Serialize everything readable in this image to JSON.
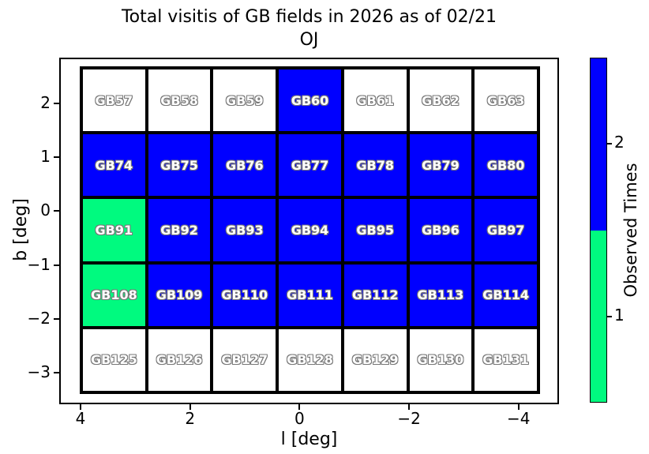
{
  "title": {
    "line1": "Total visitis of GB fields in 2026 as of 02/21",
    "line2": "OJ"
  },
  "chart_data": {
    "type": "heatmap",
    "title": "Total visitis of GB fields in 2026 as of 02/21\nOJ",
    "xlabel": "l [deg]",
    "ylabel": "b [deg]",
    "x_axis_inverted": true,
    "x_tick_labels": [
      "4",
      "2",
      "0",
      "−2",
      "−4"
    ],
    "y_tick_labels": [
      "2",
      "1",
      "0",
      "−1",
      "−2",
      "−3"
    ],
    "value_colors": {
      "0": "#ffffff",
      "1": "#00fa7f",
      "2": "#0000ff"
    },
    "colorbar": {
      "label": "Observed Times",
      "tick_labels": [
        "2",
        "1"
      ],
      "segments": [
        {
          "value": 2,
          "color": "#0000ff"
        },
        {
          "value": 1,
          "color": "#00fa7f"
        }
      ]
    },
    "rows": [
      {
        "cells": [
          {
            "label": "GB57",
            "value": 0
          },
          {
            "label": "GB58",
            "value": 0
          },
          {
            "label": "GB59",
            "value": 0
          },
          {
            "label": "GB60",
            "value": 2
          },
          {
            "label": "GB61",
            "value": 0
          },
          {
            "label": "GB62",
            "value": 0
          },
          {
            "label": "GB63",
            "value": 0
          }
        ]
      },
      {
        "cells": [
          {
            "label": "GB74",
            "value": 2
          },
          {
            "label": "GB75",
            "value": 2
          },
          {
            "label": "GB76",
            "value": 2
          },
          {
            "label": "GB77",
            "value": 2
          },
          {
            "label": "GB78",
            "value": 2
          },
          {
            "label": "GB79",
            "value": 2
          },
          {
            "label": "GB80",
            "value": 2
          }
        ]
      },
      {
        "cells": [
          {
            "label": "GB91",
            "value": 1
          },
          {
            "label": "GB92",
            "value": 2
          },
          {
            "label": "GB93",
            "value": 2
          },
          {
            "label": "GB94",
            "value": 2
          },
          {
            "label": "GB95",
            "value": 2
          },
          {
            "label": "GB96",
            "value": 2
          },
          {
            "label": "GB97",
            "value": 2
          }
        ]
      },
      {
        "cells": [
          {
            "label": "GB108",
            "value": 1
          },
          {
            "label": "GB109",
            "value": 2
          },
          {
            "label": "GB110",
            "value": 2
          },
          {
            "label": "GB111",
            "value": 2
          },
          {
            "label": "GB112",
            "value": 2
          },
          {
            "label": "GB113",
            "value": 2
          },
          {
            "label": "GB114",
            "value": 2
          }
        ]
      },
      {
        "cells": [
          {
            "label": "GB125",
            "value": 0
          },
          {
            "label": "GB126",
            "value": 0
          },
          {
            "label": "GB127",
            "value": 0
          },
          {
            "label": "GB128",
            "value": 0
          },
          {
            "label": "GB129",
            "value": 0
          },
          {
            "label": "GB130",
            "value": 0
          },
          {
            "label": "GB131",
            "value": 0
          }
        ]
      }
    ]
  }
}
